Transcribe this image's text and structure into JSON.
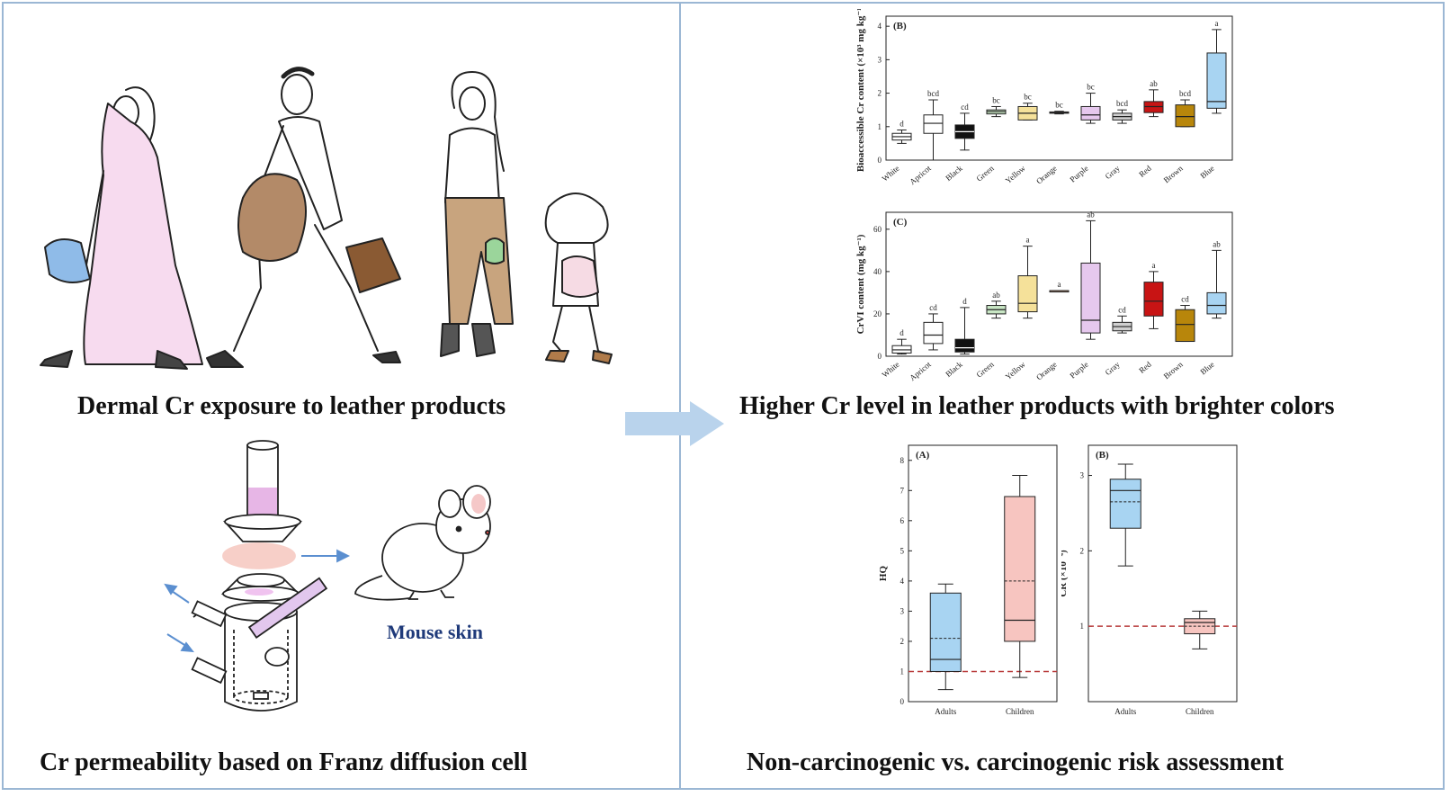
{
  "captions": {
    "exposure": "Dermal Cr exposure to leather products",
    "colors": "Higher Cr level in leather products with brighter colors",
    "permeability": "Cr permeability based on Franz diffusion cell",
    "risk": "Non-carcinogenic vs. carcinogenic risk assessment",
    "mouse": "Mouse skin"
  },
  "colors": {
    "frame": "#9bb7d4",
    "arrow": "#b9d3ec",
    "blue_box": "#a8d4f2",
    "pink_box": "#f7c5c0",
    "threshold": "#b83a3a"
  },
  "chart_data": [
    {
      "panel": "(B)",
      "type": "box",
      "ylabel": "Bioaccessible Cr content (×10³ mg kg⁻¹)",
      "yticks": [
        "0",
        "1",
        "2",
        "3",
        "4"
      ],
      "ylim": [
        0,
        4.3
      ],
      "categories": [
        "White",
        "Apricot",
        "Black",
        "Green",
        "Yellow",
        "Orange",
        "Purple",
        "Gray",
        "Red",
        "Brown",
        "Blue"
      ],
      "letters": [
        "d",
        "bcd",
        "cd",
        "bc",
        "bc",
        "bc",
        "bc",
        "bcd",
        "ab",
        "bcd",
        "a"
      ],
      "fills": [
        "#ffffff",
        "#ffffff",
        "#111111",
        "#c8e6c4",
        "#f5e19a",
        "#f2b38a",
        "#e6c8ee",
        "#d0d0d0",
        "#c81414",
        "#b8860b",
        "#a8d4f2"
      ],
      "boxes": [
        {
          "min": 0.5,
          "q1": 0.6,
          "median": 0.7,
          "q3": 0.8,
          "max": 0.9
        },
        {
          "min": 0.0,
          "q1": 0.8,
          "median": 1.1,
          "q3": 1.35,
          "max": 1.8
        },
        {
          "min": 0.3,
          "q1": 0.65,
          "median": 0.85,
          "q3": 1.05,
          "max": 1.4
        },
        {
          "min": 1.3,
          "q1": 1.38,
          "median": 1.45,
          "q3": 1.5,
          "max": 1.6
        },
        {
          "min": 1.2,
          "q1": 1.2,
          "median": 1.4,
          "q3": 1.6,
          "max": 1.7
        },
        {
          "min": 1.38,
          "q1": 1.4,
          "median": 1.42,
          "q3": 1.44,
          "max": 1.46
        },
        {
          "min": 1.1,
          "q1": 1.2,
          "median": 1.35,
          "q3": 1.6,
          "max": 2.0
        },
        {
          "min": 1.1,
          "q1": 1.2,
          "median": 1.3,
          "q3": 1.4,
          "max": 1.5
        },
        {
          "min": 1.3,
          "q1": 1.42,
          "median": 1.6,
          "q3": 1.75,
          "max": 2.1
        },
        {
          "min": 1.0,
          "q1": 1.0,
          "median": 1.3,
          "q3": 1.65,
          "max": 1.8
        },
        {
          "min": 1.4,
          "q1": 1.55,
          "median": 1.75,
          "q3": 3.2,
          "max": 3.9
        }
      ]
    },
    {
      "panel": "(C)",
      "type": "box",
      "ylabel": "CrVI content (mg kg⁻¹)",
      "yticks": [
        "0",
        "20",
        "40",
        "60"
      ],
      "ylim": [
        0,
        68
      ],
      "categories": [
        "White",
        "Apricot",
        "Black",
        "Green",
        "Yellow",
        "Orange",
        "Purple",
        "Gray",
        "Red",
        "Brown",
        "Blue"
      ],
      "letters": [
        "d",
        "cd",
        "d",
        "ab",
        "a",
        "a",
        "ab",
        "cd",
        "a",
        "cd",
        "ab"
      ],
      "fills": [
        "#ffffff",
        "#ffffff",
        "#111111",
        "#c8e6c4",
        "#f5e19a",
        "#f2b38a",
        "#e6c8ee",
        "#d0d0d0",
        "#c81414",
        "#b8860b",
        "#a8d4f2"
      ],
      "boxes": [
        {
          "min": 1,
          "q1": 1.5,
          "median": 3,
          "q3": 5,
          "max": 8
        },
        {
          "min": 3,
          "q1": 6,
          "median": 10,
          "q3": 16,
          "max": 20
        },
        {
          "min": 1,
          "q1": 2,
          "median": 4,
          "q3": 8,
          "max": 23
        },
        {
          "min": 18,
          "q1": 20,
          "median": 22,
          "q3": 24,
          "max": 26
        },
        {
          "min": 18,
          "q1": 21,
          "median": 25,
          "q3": 38,
          "max": 52
        },
        {
          "min": 31,
          "q1": 31,
          "median": 31,
          "q3": 31,
          "max": 31
        },
        {
          "min": 8,
          "q1": 11,
          "median": 17,
          "q3": 44,
          "max": 64
        },
        {
          "min": 11,
          "q1": 12,
          "median": 14,
          "q3": 16,
          "max": 19
        },
        {
          "min": 13,
          "q1": 19,
          "median": 26,
          "q3": 35,
          "max": 40
        },
        {
          "min": 7,
          "q1": 7,
          "median": 15,
          "q3": 22,
          "max": 24
        },
        {
          "min": 18,
          "q1": 20,
          "median": 24,
          "q3": 30,
          "max": 50
        }
      ]
    },
    {
      "panel": "(A)",
      "type": "box",
      "ylabel": "HQ",
      "yticks": [
        "0",
        "1",
        "2",
        "3",
        "4",
        "5",
        "6",
        "7",
        "8"
      ],
      "ylim": [
        0,
        8.5
      ],
      "threshold": 1,
      "categories": [
        "Adults",
        "Children"
      ],
      "boxes": [
        {
          "min": 0.4,
          "q1": 1.0,
          "median": 1.4,
          "mean": 2.1,
          "q3": 3.6,
          "max": 3.9
        },
        {
          "min": 0.8,
          "q1": 2.0,
          "median": 2.7,
          "mean": 4.0,
          "q3": 6.8,
          "max": 7.5
        }
      ]
    },
    {
      "panel": "(B)",
      "type": "box",
      "ylabel": "CR (×10⁻⁴)",
      "yticks": [
        "1",
        "2",
        "3"
      ],
      "ylim": [
        0,
        3.4
      ],
      "threshold": 1,
      "categories": [
        "Adults",
        "Children"
      ],
      "boxes": [
        {
          "min": 1.8,
          "q1": 2.3,
          "median": 2.8,
          "mean": 2.65,
          "q3": 2.95,
          "max": 3.15
        },
        {
          "min": 0.7,
          "q1": 0.9,
          "median": 1.05,
          "mean": 1.0,
          "q3": 1.1,
          "max": 1.2
        }
      ]
    }
  ]
}
